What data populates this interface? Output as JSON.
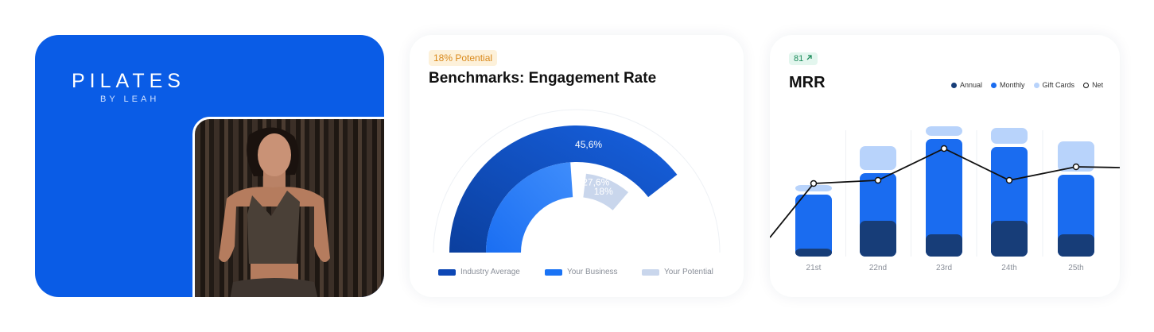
{
  "brand": {
    "name": "PILATES",
    "subtitle": "BY LEAH"
  },
  "benchmarks": {
    "badge": "18% Potential",
    "title": "Benchmarks: Engagement Rate",
    "legend": [
      "Industry Average",
      "Your Business",
      "Your Potential"
    ],
    "colors": [
      "#0d47b5",
      "#1a73f5",
      "#c9d6ec"
    ]
  },
  "mrr": {
    "badge_value": "81",
    "badge_icon": "arrow-up-right-icon",
    "title": "MRR",
    "legend": [
      "Annual",
      "Monthly",
      "Gift Cards",
      "Net"
    ],
    "colors": {
      "annual": "#173d78",
      "monthly": "#1a6cf0",
      "gift": "#b8d3fb",
      "net": "#111111"
    }
  },
  "chart_data": [
    {
      "type": "pie",
      "title": "Benchmarks: Engagement Rate",
      "series": [
        {
          "name": "Industry Average",
          "value": 45.6,
          "label": "45,6%"
        },
        {
          "name": "Your Business",
          "value": 27.6,
          "label": "27,6%"
        },
        {
          "name": "Your Potential",
          "value": 18,
          "label": "18%"
        }
      ]
    },
    {
      "type": "bar",
      "title": "MRR",
      "categories": [
        "21st",
        "22nd",
        "23rd",
        "24th",
        "25th"
      ],
      "series": [
        {
          "name": "Annual",
          "values": [
            10,
            45,
            28,
            45,
            28
          ]
        },
        {
          "name": "Monthly",
          "values": [
            68,
            60,
            120,
            93,
            75
          ]
        },
        {
          "name": "Gift Cards",
          "values": [
            8,
            30,
            12,
            20,
            38
          ]
        },
        {
          "name": "Net",
          "values": [
            92,
            96,
            136,
            96,
            113
          ]
        }
      ],
      "ylim": [
        0,
        160
      ]
    }
  ]
}
